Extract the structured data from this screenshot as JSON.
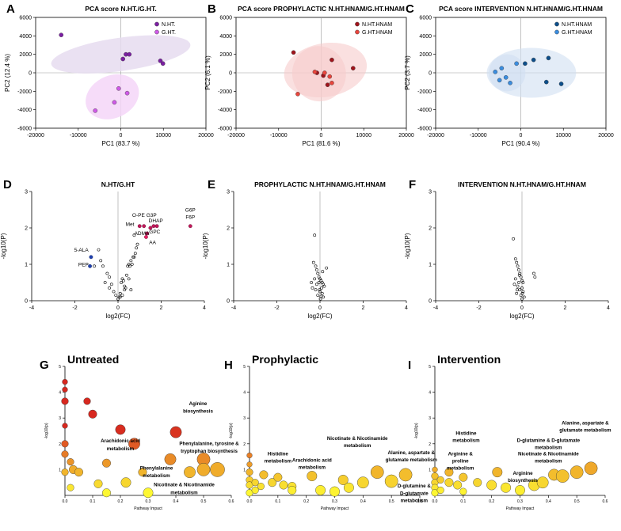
{
  "panel_labels": [
    "A",
    "B",
    "C",
    "D",
    "E",
    "F",
    "G",
    "H",
    "I"
  ],
  "colors": {
    "nht": "#7b1fa2",
    "ght": "#d05ae8",
    "nht_ellipse": "#e6dcf0",
    "ght_ellipse": "#f4d6f8",
    "nhtnam_b": "#a0141c",
    "ghtnam_b": "#e8453c",
    "ellipse_b": "#f6cccc",
    "nhtnam_c": "#0d4f8b",
    "ghtnam_c": "#3a8de0",
    "ellipse_c": "#d0e0f2",
    "volcano_red": "#c2185b",
    "volcano_blue": "#1e40af",
    "volcano_pink": "#e91e63",
    "pathway_high": "#d7301f",
    "pathway_low": "#ffff33"
  },
  "chart_data": [
    {
      "panel": "A",
      "type": "scatter",
      "title": "PCA score N.HT./G.HT.",
      "xlabel": "PC1 (83.7 %)",
      "ylabel": "PC2 (12.4 %)",
      "xlim": [
        -20000,
        20000
      ],
      "ylim": [
        -6000,
        6000
      ],
      "xticks": [
        -20000,
        -10000,
        0,
        10000,
        20000
      ],
      "yticks": [
        -6000,
        -4000,
        -2000,
        0,
        2000,
        4000,
        6000
      ],
      "series": [
        {
          "name": "N.HT.",
          "x": [
            -14000,
            500,
            1200,
            2000,
            9300,
            9900
          ],
          "y": [
            4100,
            1500,
            2000,
            2000,
            1300,
            1000
          ]
        },
        {
          "name": "G.HT.",
          "x": [
            -6000,
            -1500,
            -500,
            1500
          ],
          "y": [
            -4100,
            -3200,
            -1700,
            -2200
          ]
        }
      ],
      "ellipses": [
        {
          "series": "N.HT.",
          "cx": 0,
          "cy": 2000,
          "rx": 16500,
          "ry": 1800,
          "rot": -8
        },
        {
          "series": "G.HT.",
          "cx": -2000,
          "cy": -2600,
          "rx": 6500,
          "ry": 2300,
          "rot": -25
        }
      ]
    },
    {
      "panel": "B",
      "type": "scatter",
      "title": "PCA score PROPHYLACTIC N.HT.HNAM/G.HT.HNAM",
      "xlabel": "PC1 (81.6 %)",
      "ylabel": "PC2 (6.1 %)",
      "xlim": [
        -20000,
        20000
      ],
      "ylim": [
        -6000,
        6000
      ],
      "xticks": [
        -20000,
        -10000,
        0,
        10000,
        20000
      ],
      "yticks": [
        -6000,
        -4000,
        -2000,
        0,
        2000,
        4000,
        6000
      ],
      "series": [
        {
          "name": "N.HT.HNAM",
          "x": [
            -6500,
            -1000,
            500,
            2500,
            7500,
            1500
          ],
          "y": [
            2200,
            0,
            -300,
            1400,
            500,
            -1300
          ]
        },
        {
          "name": "G.HT.HNAM",
          "x": [
            -5500,
            -1500,
            800,
            2000,
            2500
          ],
          "y": [
            -2300,
            100,
            0,
            -400,
            -1100
          ]
        }
      ],
      "ellipses": [
        {
          "series": "N.HT.HNAM",
          "cx": 1000,
          "cy": 300,
          "rx": 9800,
          "ry": 2900,
          "rot": -10
        },
        {
          "series": "G.HT.HNAM",
          "cx": -500,
          "cy": -100,
          "rx": 6300,
          "ry": 3000,
          "rot": -15
        }
      ]
    },
    {
      "panel": "C",
      "type": "scatter",
      "title": "PCA score INTERVENTION N.HT.HNAM/G.HT.HNAM",
      "xlabel": "PC1 (90.4 %)",
      "ylabel": "PC2 (3.7 %)",
      "xlim": [
        -20000,
        20000
      ],
      "ylim": [
        -6000,
        6000
      ],
      "xticks": [
        -20000,
        -10000,
        0,
        10000,
        20000
      ],
      "yticks": [
        -6000,
        -4000,
        -2000,
        0,
        2000,
        4000,
        6000
      ],
      "series": [
        {
          "name": "N.HT.HNAM",
          "x": [
            1000,
            3000,
            6500,
            6000,
            9500
          ],
          "y": [
            1000,
            1400,
            1600,
            -1000,
            -1200
          ]
        },
        {
          "name": "G.HT.HNAM",
          "x": [
            -6000,
            -4500,
            -3500,
            -2500,
            -5000,
            -1000
          ],
          "y": [
            100,
            500,
            -500,
            -1100,
            -800,
            1000
          ]
        }
      ],
      "ellipses": [
        {
          "series": "N.HT.HNAM",
          "cx": 2500,
          "cy": 0,
          "rx": 10500,
          "ry": 2700,
          "rot": 0
        },
        {
          "series": "G.HT.HNAM",
          "cx": -3200,
          "cy": 0,
          "rx": 4300,
          "ry": 2000,
          "rot": 0
        }
      ]
    },
    {
      "panel": "D",
      "type": "scatter",
      "title": "N.HT/G.HT",
      "xlabel": "log2(FC)",
      "ylabel": "-log10(P)",
      "xlim": [
        -4,
        4
      ],
      "ylim": [
        0,
        3
      ],
      "xticks": [
        -4,
        -2,
        0,
        2,
        4
      ],
      "yticks": [
        0,
        1,
        2,
        3
      ],
      "points_open": {
        "x": [
          -0.9,
          -0.8,
          -1.1,
          -0.7,
          -0.5,
          -0.4,
          -0.3,
          -0.2,
          -0.6,
          -0.4,
          -0.1,
          0.0,
          0.05,
          0.1,
          0.15,
          0.2,
          0.25,
          0.3,
          0.35,
          0.4,
          0.45,
          0.5,
          0.55,
          0.6,
          0.65,
          0.7,
          0.75,
          0.8,
          0.85,
          0.9,
          0.5,
          0.3,
          0.2,
          0.1,
          0.6,
          0.75
        ],
        "y": [
          1.4,
          1.1,
          0.95,
          0.95,
          0.75,
          0.65,
          0.45,
          0.25,
          0.5,
          0.35,
          0.15,
          0.05,
          0.1,
          0.2,
          0.5,
          0.6,
          0.55,
          0.3,
          0.35,
          0.7,
          0.95,
          1.0,
          0.95,
          1.1,
          1.0,
          1.2,
          1.2,
          1.3,
          1.45,
          1.55,
          0.6,
          0.4,
          0.15,
          0.1,
          0.3,
          1.8
        ]
      },
      "points_sig_red": {
        "x": [
          1.0,
          1.2,
          1.35,
          1.5,
          1.65,
          1.8,
          3.35
        ],
        "y": [
          2.05,
          2.05,
          1.85,
          2.0,
          2.05,
          2.05,
          2.05
        ]
      },
      "points_sig_blue": {
        "x": [
          -1.25,
          -1.3
        ],
        "y": [
          1.2,
          0.95
        ]
      },
      "points_sig_pink": {
        "x": [
          1.3
        ],
        "y": [
          1.75
        ]
      },
      "annotations": [
        {
          "text": "5-ALA",
          "x": -1.7,
          "y": 1.35
        },
        {
          "text": "PEP",
          "x": -1.6,
          "y": 0.95
        },
        {
          "text": "O-PE",
          "x": 0.95,
          "y": 2.3
        },
        {
          "text": "G3P",
          "x": 1.55,
          "y": 2.3
        },
        {
          "text": "Met",
          "x": 0.55,
          "y": 2.05
        },
        {
          "text": "DHAP",
          "x": 1.75,
          "y": 2.15
        },
        {
          "text": "ADMA",
          "x": 1.1,
          "y": 1.8
        },
        {
          "text": "GPC",
          "x": 1.7,
          "y": 1.85
        },
        {
          "text": "AA",
          "x": 1.6,
          "y": 1.55
        },
        {
          "text": "G6P",
          "x": 3.35,
          "y": 2.45
        },
        {
          "text": "F6P",
          "x": 3.35,
          "y": 2.25
        }
      ]
    },
    {
      "panel": "E",
      "type": "scatter",
      "title": "PROPHYLACTIC N.HT.HNAM/G.HT.HNAM",
      "xlabel": "log2(FC)",
      "ylabel": "-log10(P)",
      "xlim": [
        -4,
        4
      ],
      "ylim": [
        0,
        3
      ],
      "xticks": [
        -4,
        -2,
        0,
        2,
        4
      ],
      "yticks": [
        0,
        1,
        2,
        3
      ],
      "points_open": {
        "x": [
          -0.25,
          -0.3,
          -0.2,
          -0.15,
          -0.1,
          -0.05,
          0.0,
          0.05,
          0.1,
          0.15,
          0.2,
          -0.35,
          -0.2,
          0.0,
          0.1,
          -0.1,
          0.05,
          0.15,
          -0.25,
          -0.05,
          0.08,
          -0.15,
          0.02,
          -0.02,
          0.12,
          0.3,
          -0.4
        ],
        "y": [
          1.8,
          1.05,
          0.95,
          0.85,
          0.75,
          0.65,
          0.6,
          0.55,
          0.5,
          0.45,
          0.4,
          0.35,
          0.3,
          0.25,
          0.2,
          0.15,
          0.12,
          0.1,
          0.6,
          0.5,
          0.35,
          0.45,
          0.05,
          0.3,
          0.8,
          0.9,
          0.5
        ]
      }
    },
    {
      "panel": "F",
      "type": "scatter",
      "title": "INTERVENTION N.HT.HNAM/G.HT.HNAM",
      "xlabel": "log2(FC)",
      "ylabel": "-log10(P)",
      "xlim": [
        -4,
        4
      ],
      "ylim": [
        0,
        3
      ],
      "xticks": [
        -4,
        -2,
        0,
        2,
        4
      ],
      "yticks": [
        0,
        1,
        2,
        3
      ],
      "points_open": {
        "x": [
          -0.4,
          -0.3,
          -0.25,
          -0.2,
          -0.15,
          -0.1,
          -0.05,
          0.0,
          0.05,
          -0.35,
          -0.2,
          0.0,
          -0.1,
          0.05,
          -0.25,
          -0.05,
          0.1,
          0.55,
          0.6,
          -0.3,
          -0.15,
          0.0,
          -0.12,
          -0.22,
          0.02
        ],
        "y": [
          1.7,
          1.15,
          1.05,
          0.95,
          0.85,
          0.75,
          0.65,
          0.55,
          0.5,
          0.45,
          0.4,
          0.35,
          0.3,
          0.25,
          0.2,
          0.15,
          0.1,
          0.75,
          0.65,
          0.6,
          0.5,
          0.05,
          0.7,
          0.3,
          0.2
        ]
      }
    },
    {
      "panel": "G",
      "type": "scatter",
      "title": "Untreated",
      "xlabel": "Pathway Impact",
      "ylabel": "-log10(p)",
      "xlim": [
        0,
        0.6
      ],
      "ylim": [
        0,
        5
      ],
      "xticks": [
        0.0,
        0.1,
        0.2,
        0.3,
        0.4,
        0.5,
        0.6
      ],
      "yticks": [
        1,
        2,
        3,
        4,
        5
      ],
      "bubbles": {
        "x": [
          0.0,
          0.0,
          0.0,
          0.0,
          0.0,
          0.0,
          0.02,
          0.03,
          0.05,
          0.08,
          0.1,
          0.12,
          0.15,
          0.15,
          0.2,
          0.22,
          0.25,
          0.28,
          0.3,
          0.38,
          0.4,
          0.45,
          0.5,
          0.5,
          0.55,
          0.0,
          0.02
        ],
        "y": [
          4.4,
          4.1,
          3.65,
          2.7,
          2.0,
          1.6,
          1.3,
          1.0,
          0.9,
          3.65,
          3.15,
          0.45,
          1.25,
          0.1,
          2.55,
          0.5,
          2.0,
          0.9,
          0.1,
          1.4,
          2.45,
          0.9,
          1.4,
          1.0,
          1.0,
          0.9,
          0.3
        ],
        "size": [
          2,
          2,
          3,
          2,
          3,
          3,
          3,
          4,
          4,
          3,
          4,
          4,
          4,
          4,
          5,
          5,
          6,
          4,
          5,
          6,
          6,
          6,
          7,
          7,
          8,
          3,
          3
        ]
      },
      "annotations": [
        {
          "text": "Aginine",
          "x": 0.48,
          "y": 3.5
        },
        {
          "text": "biosynthesis",
          "x": 0.48,
          "y": 3.2
        },
        {
          "text": "Arachidonic acid",
          "x": 0.2,
          "y": 2.05
        },
        {
          "text": "metabolism",
          "x": 0.2,
          "y": 1.75
        },
        {
          "text": "Phenylalanine, tyrosine &",
          "x": 0.52,
          "y": 1.95
        },
        {
          "text": "tryptophan biosynthesis",
          "x": 0.52,
          "y": 1.65
        },
        {
          "text": "Phenylalanine",
          "x": 0.33,
          "y": 1.0
        },
        {
          "text": "metabolism",
          "x": 0.33,
          "y": 0.7
        },
        {
          "text": "Nicotinate & Nicotinamide",
          "x": 0.43,
          "y": 0.35
        },
        {
          "text": "metabolism",
          "x": 0.43,
          "y": 0.05
        }
      ]
    },
    {
      "panel": "H",
      "type": "scatter",
      "title": "Prophylactic",
      "xlabel": "Pathway Impact",
      "ylabel": "-log10(p)",
      "xlim": [
        0,
        0.6
      ],
      "ylim": [
        0,
        5
      ],
      "xticks": [
        0.0,
        0.1,
        0.2,
        0.3,
        0.4,
        0.5,
        0.6
      ],
      "yticks": [
        1,
        2,
        3,
        4,
        5
      ],
      "bubbles": {
        "x": [
          0.0,
          0.0,
          0.0,
          0.0,
          0.0,
          0.02,
          0.04,
          0.05,
          0.08,
          0.1,
          0.12,
          0.15,
          0.15,
          0.22,
          0.25,
          0.33,
          0.35,
          0.4,
          0.45,
          0.5,
          0.55,
          0.3,
          0.0,
          0.02
        ],
        "y": [
          1.55,
          1.2,
          0.9,
          0.6,
          0.4,
          0.5,
          0.35,
          0.8,
          0.5,
          0.7,
          0.4,
          0.35,
          0.2,
          0.75,
          0.2,
          0.6,
          0.3,
          0.5,
          0.9,
          0.55,
          0.8,
          0.15,
          0.1,
          0.2
        ],
        "size": [
          2,
          2,
          3,
          3,
          3,
          3,
          3,
          4,
          4,
          4,
          4,
          4,
          4,
          5,
          5,
          5,
          5,
          6,
          7,
          7,
          7,
          5,
          3,
          3
        ]
      },
      "annotations": [
        {
          "text": "Histidine",
          "x": 0.1,
          "y": 1.55
        },
        {
          "text": "metabolism",
          "x": 0.1,
          "y": 1.27
        },
        {
          "text": "Arachidonic acid",
          "x": 0.22,
          "y": 1.3
        },
        {
          "text": "metabolism",
          "x": 0.22,
          "y": 1.02
        },
        {
          "text": "Nicotinate & Nicotinamide",
          "x": 0.38,
          "y": 2.15
        },
        {
          "text": "metabolism",
          "x": 0.38,
          "y": 1.87
        },
        {
          "text": "Alanine, aspartate &",
          "x": 0.57,
          "y": 1.6
        },
        {
          "text": "glutamate metabolism",
          "x": 0.57,
          "y": 1.32
        },
        {
          "text": "D-glutamine &",
          "x": 0.58,
          "y": 0.3
        },
        {
          "text": "D-glutamate",
          "x": 0.58,
          "y": 0.02
        },
        {
          "text": "metabolism",
          "x": 0.58,
          "y": -0.26
        }
      ]
    },
    {
      "panel": "I",
      "type": "scatter",
      "title": "Intervention",
      "xlabel": "Pathway Impact",
      "ylabel": "-log10(p)",
      "xlim": [
        0,
        0.6
      ],
      "ylim": [
        0,
        5
      ],
      "xticks": [
        0.0,
        0.1,
        0.2,
        0.3,
        0.4,
        0.5,
        0.6
      ],
      "yticks": [
        1,
        2,
        3,
        4,
        5
      ],
      "bubbles": {
        "x": [
          0.0,
          0.0,
          0.0,
          0.0,
          0.02,
          0.05,
          0.05,
          0.08,
          0.1,
          0.15,
          0.2,
          0.22,
          0.25,
          0.3,
          0.35,
          0.38,
          0.42,
          0.45,
          0.5,
          0.55,
          0.0,
          0.02,
          0.1
        ],
        "y": [
          1.0,
          0.75,
          0.5,
          0.3,
          0.6,
          0.9,
          0.5,
          0.4,
          0.7,
          0.5,
          0.4,
          0.9,
          0.3,
          0.2,
          0.4,
          0.5,
          0.8,
          0.75,
          0.9,
          1.05,
          0.1,
          0.2,
          0.15
        ],
        "size": [
          2,
          3,
          3,
          3,
          3,
          4,
          4,
          4,
          4,
          4,
          5,
          5,
          5,
          5,
          6,
          6,
          6,
          7,
          7,
          7,
          3,
          3,
          3
        ]
      },
      "annotations": [
        {
          "text": "Alanine, aspartate &",
          "x": 0.53,
          "y": 2.75
        },
        {
          "text": "glutamate metabolism",
          "x": 0.53,
          "y": 2.47
        },
        {
          "text": "Histidine",
          "x": 0.11,
          "y": 2.35
        },
        {
          "text": "metabolism",
          "x": 0.11,
          "y": 2.07
        },
        {
          "text": "D-glutamine & D-glutamate",
          "x": 0.4,
          "y": 2.07
        },
        {
          "text": "metabolism",
          "x": 0.4,
          "y": 1.79
        },
        {
          "text": "Arginine &",
          "x": 0.09,
          "y": 1.55
        },
        {
          "text": "proline",
          "x": 0.09,
          "y": 1.27
        },
        {
          "text": "metabolism",
          "x": 0.09,
          "y": 0.99
        },
        {
          "text": "Nicotinate & Nicotinamide",
          "x": 0.4,
          "y": 1.55
        },
        {
          "text": "metabolism",
          "x": 0.4,
          "y": 1.27
        },
        {
          "text": "Arginine",
          "x": 0.31,
          "y": 0.8
        },
        {
          "text": "biosynthesis",
          "x": 0.31,
          "y": 0.52
        }
      ]
    }
  ]
}
